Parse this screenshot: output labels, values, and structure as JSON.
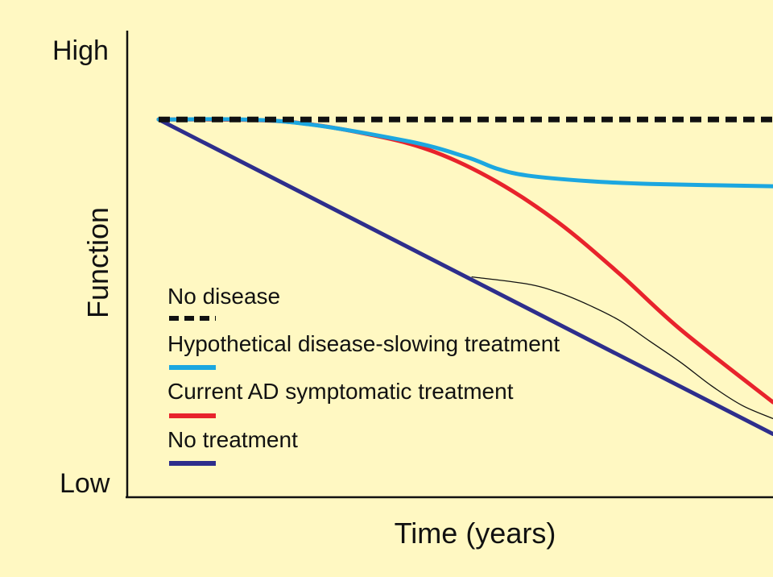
{
  "chart_data": {
    "type": "line",
    "title": "",
    "xlabel": "Time (years)",
    "ylabel": "Function",
    "y_tick_labels": {
      "high": "High",
      "low": "Low"
    },
    "xlim": [
      0,
      100
    ],
    "ylim": [
      0,
      100
    ],
    "grid": false,
    "legend_placement": "bottom-left-inside",
    "series": [
      {
        "name": "No disease",
        "style": "dashed",
        "color": "#111111",
        "points": [
          [
            0,
            81
          ],
          [
            100,
            81
          ]
        ]
      },
      {
        "name": "Hypothetical disease-slowing treatment",
        "style": "solid",
        "color": "#1CA7E0",
        "points": [
          [
            0,
            81
          ],
          [
            20,
            80.6
          ],
          [
            40,
            76.5
          ],
          [
            50,
            73
          ],
          [
            55,
            70.5
          ],
          [
            60,
            69
          ],
          [
            70,
            67.8
          ],
          [
            80,
            67.2
          ],
          [
            100,
            66.7
          ]
        ]
      },
      {
        "name": "Current AD symptomatic treatment",
        "style": "solid",
        "color": "#E8232C",
        "points": [
          [
            0,
            81
          ],
          [
            20,
            80.6
          ],
          [
            35,
            77.6
          ],
          [
            45,
            74
          ],
          [
            55,
            67.7
          ],
          [
            65,
            59
          ],
          [
            75,
            48
          ],
          [
            85,
            36
          ],
          [
            100,
            20.5
          ]
        ]
      },
      {
        "name": "No treatment",
        "style": "solid",
        "color": "#2E2E8C",
        "points": [
          [
            0,
            81
          ],
          [
            100,
            13.7
          ]
        ]
      },
      {
        "name": "",
        "style": "thin",
        "color": "#111111",
        "points": [
          [
            51,
            47.3
          ],
          [
            60,
            45.8
          ],
          [
            65,
            44
          ],
          [
            70,
            41.3
          ],
          [
            75,
            38
          ],
          [
            80,
            33.5
          ],
          [
            85,
            29
          ],
          [
            90,
            24
          ],
          [
            95,
            19.8
          ],
          [
            100,
            17
          ]
        ]
      }
    ]
  }
}
